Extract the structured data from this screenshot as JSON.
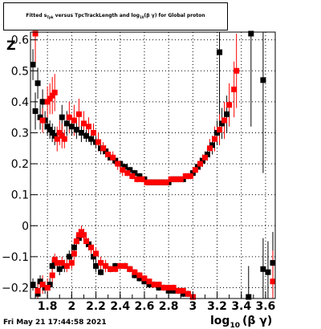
{
  "title": {
    "pre": "Fitted s",
    "sub1": "Tpk",
    "mid": " versus TpcTrackLength and log",
    "sub2": "10",
    "post": "(β γ) for Global proton"
  },
  "y_axis_label": "Z",
  "x_axis_label": {
    "main": "log",
    "sub": "10",
    "post": "(β γ)"
  },
  "timestamp": "Fri May 21 17:44:58 2021",
  "chart_data": {
    "type": "scatter",
    "xlim": [
      1.66,
      3.68
    ],
    "ylim": [
      -0.235,
      0.625
    ],
    "x_ticks": [
      1.8,
      2.0,
      2.2,
      2.4,
      2.6,
      2.8,
      3.0,
      3.2,
      3.4,
      3.6
    ],
    "x_tick_labels": [
      "1.8",
      "2",
      "2.2",
      "2.4",
      "2.6",
      "2.8",
      "3",
      "3.2",
      "3.4",
      "3.6"
    ],
    "y_ticks": [
      -0.2,
      -0.1,
      0.0,
      0.1,
      0.2,
      0.3,
      0.4,
      0.5,
      0.6
    ],
    "y_tick_labels": [
      "−0.2",
      "−0.1",
      "0",
      "0.1",
      "0.2",
      "0.3",
      "0.4",
      "0.5",
      "0.6"
    ],
    "grid": true,
    "series": [
      {
        "color": "#000000",
        "points": [
          [
            1.68,
            0.52,
            0.05
          ],
          [
            1.7,
            0.37,
            0.06
          ],
          [
            1.72,
            0.46,
            0.05
          ],
          [
            1.74,
            0.35,
            0.04
          ],
          [
            1.76,
            0.4,
            0.04
          ],
          [
            1.78,
            0.34,
            0.03
          ],
          [
            1.8,
            0.32,
            0.03
          ],
          [
            1.82,
            0.31,
            0.03
          ],
          [
            1.84,
            0.3,
            0.03
          ],
          [
            1.86,
            0.29,
            0.03
          ],
          [
            1.92,
            0.35,
            0.04
          ],
          [
            1.96,
            0.33,
            0.04
          ],
          [
            2.0,
            0.32,
            0.03
          ],
          [
            2.04,
            0.31,
            0.03
          ],
          [
            2.08,
            0.3,
            0.03
          ],
          [
            2.12,
            0.29,
            0.02
          ],
          [
            2.16,
            0.28,
            0.02
          ],
          [
            2.2,
            0.27,
            0.02
          ],
          [
            2.24,
            0.25,
            0.02
          ],
          [
            2.28,
            0.24,
            0.02
          ],
          [
            2.32,
            0.22,
            0.01
          ],
          [
            2.36,
            0.21,
            0.01
          ],
          [
            2.4,
            0.2,
            0.01
          ],
          [
            2.44,
            0.19,
            0.01
          ],
          [
            2.48,
            0.18,
            0.01
          ],
          [
            2.52,
            0.17,
            0.01
          ],
          [
            2.56,
            0.16,
            0.01
          ],
          [
            2.6,
            0.15,
            0.01
          ],
          [
            2.64,
            0.14,
            0.01
          ],
          [
            2.68,
            0.14,
            0.01
          ],
          [
            2.72,
            0.14,
            0.01
          ],
          [
            2.76,
            0.14,
            0.01
          ],
          [
            2.8,
            0.14,
            0.01
          ],
          [
            2.84,
            0.15,
            0.01
          ],
          [
            2.88,
            0.15,
            0.01
          ],
          [
            2.92,
            0.15,
            0.01
          ],
          [
            2.96,
            0.16,
            0.01
          ],
          [
            3.0,
            0.17,
            0.01
          ],
          [
            3.04,
            0.19,
            0.01
          ],
          [
            3.08,
            0.21,
            0.02
          ],
          [
            3.12,
            0.23,
            0.02
          ],
          [
            3.16,
            0.26,
            0.03
          ],
          [
            3.2,
            0.3,
            0.04
          ],
          [
            3.24,
            0.33,
            0.05
          ],
          [
            3.28,
            0.36,
            0.06
          ],
          [
            3.22,
            0.56,
            0.2
          ],
          [
            3.48,
            0.62,
            0.3
          ],
          [
            3.58,
            0.47,
            0.3
          ],
          [
            1.68,
            -0.19,
            0.02
          ],
          [
            1.72,
            -0.22,
            0.02
          ],
          [
            1.74,
            -0.18,
            0.02
          ],
          [
            1.78,
            -0.2,
            0.02
          ],
          [
            1.82,
            -0.19,
            0.02
          ],
          [
            1.84,
            -0.13,
            0.02
          ],
          [
            1.86,
            -0.12,
            0.02
          ],
          [
            1.9,
            -0.14,
            0.02
          ],
          [
            1.94,
            -0.13,
            0.02
          ],
          [
            1.98,
            -0.1,
            0.02
          ],
          [
            2.02,
            -0.07,
            0.02
          ],
          [
            2.06,
            -0.04,
            0.02
          ],
          [
            2.1,
            -0.03,
            0.02
          ],
          [
            2.14,
            -0.06,
            0.02
          ],
          [
            2.18,
            -0.1,
            0.02
          ],
          [
            2.2,
            -0.13,
            0.02
          ],
          [
            2.24,
            -0.15,
            0.01
          ],
          [
            2.28,
            -0.13,
            0.01
          ],
          [
            2.32,
            -0.14,
            0.01
          ],
          [
            2.36,
            -0.13,
            0.01
          ],
          [
            2.4,
            -0.13,
            0.01
          ],
          [
            2.44,
            -0.13,
            0.01
          ],
          [
            2.48,
            -0.14,
            0.01
          ],
          [
            2.52,
            -0.16,
            0.01
          ],
          [
            2.56,
            -0.17,
            0.01
          ],
          [
            2.6,
            -0.18,
            0.01
          ],
          [
            2.64,
            -0.19,
            0.01
          ],
          [
            2.68,
            -0.19,
            0.01
          ],
          [
            2.72,
            -0.2,
            0.01
          ],
          [
            2.76,
            -0.2,
            0.01
          ],
          [
            2.8,
            -0.21,
            0.01
          ],
          [
            2.84,
            -0.21,
            0.01
          ],
          [
            2.88,
            -0.21,
            0.01
          ],
          [
            2.92,
            -0.22,
            0.01
          ],
          [
            2.96,
            -0.22,
            0.01
          ],
          [
            3.0,
            -0.23,
            0.01
          ],
          [
            3.46,
            -0.23,
            0.1
          ],
          [
            3.58,
            -0.14,
            0.1
          ],
          [
            3.62,
            -0.15,
            0.1
          ],
          [
            3.66,
            -0.12,
            0.1
          ]
        ]
      },
      {
        "color": "#ff0000",
        "points": [
          [
            1.7,
            0.62,
            0.1
          ],
          [
            1.76,
            0.34,
            0.04
          ],
          [
            1.8,
            0.4,
            0.05
          ],
          [
            1.82,
            0.41,
            0.05
          ],
          [
            1.84,
            0.42,
            0.06
          ],
          [
            1.86,
            0.43,
            0.06
          ],
          [
            1.88,
            0.28,
            0.04
          ],
          [
            1.9,
            0.3,
            0.04
          ],
          [
            1.92,
            0.29,
            0.04
          ],
          [
            1.94,
            0.28,
            0.03
          ],
          [
            1.98,
            0.35,
            0.05
          ],
          [
            2.02,
            0.34,
            0.05
          ],
          [
            2.06,
            0.36,
            0.05
          ],
          [
            2.1,
            0.33,
            0.04
          ],
          [
            2.14,
            0.32,
            0.03
          ],
          [
            2.18,
            0.3,
            0.03
          ],
          [
            2.22,
            0.27,
            0.03
          ],
          [
            2.26,
            0.25,
            0.02
          ],
          [
            2.3,
            0.23,
            0.02
          ],
          [
            2.34,
            0.22,
            0.02
          ],
          [
            2.38,
            0.2,
            0.02
          ],
          [
            2.42,
            0.18,
            0.02
          ],
          [
            2.46,
            0.17,
            0.01
          ],
          [
            2.5,
            0.16,
            0.01
          ],
          [
            2.54,
            0.15,
            0.01
          ],
          [
            2.58,
            0.15,
            0.01
          ],
          [
            2.62,
            0.14,
            0.01
          ],
          [
            2.66,
            0.14,
            0.01
          ],
          [
            2.7,
            0.14,
            0.01
          ],
          [
            2.74,
            0.14,
            0.01
          ],
          [
            2.78,
            0.14,
            0.01
          ],
          [
            2.82,
            0.15,
            0.01
          ],
          [
            2.86,
            0.15,
            0.01
          ],
          [
            2.9,
            0.15,
            0.01
          ],
          [
            2.94,
            0.16,
            0.01
          ],
          [
            2.98,
            0.16,
            0.01
          ],
          [
            3.02,
            0.18,
            0.01
          ],
          [
            3.06,
            0.2,
            0.02
          ],
          [
            3.1,
            0.22,
            0.02
          ],
          [
            3.14,
            0.25,
            0.03
          ],
          [
            3.18,
            0.28,
            0.04
          ],
          [
            3.22,
            0.31,
            0.05
          ],
          [
            3.26,
            0.34,
            0.06
          ],
          [
            3.3,
            0.39,
            0.07
          ],
          [
            3.34,
            0.44,
            0.09
          ],
          [
            3.36,
            0.5,
            0.12
          ],
          [
            1.72,
            -0.21,
            0.03
          ],
          [
            1.76,
            -0.19,
            0.03
          ],
          [
            1.8,
            -0.2,
            0.03
          ],
          [
            1.84,
            -0.16,
            0.03
          ],
          [
            1.86,
            -0.11,
            0.02
          ],
          [
            1.88,
            -0.12,
            0.02
          ],
          [
            1.92,
            -0.12,
            0.02
          ],
          [
            1.96,
            -0.13,
            0.02
          ],
          [
            2.0,
            -0.12,
            0.02
          ],
          [
            2.02,
            -0.09,
            0.02
          ],
          [
            2.04,
            -0.05,
            0.02
          ],
          [
            2.06,
            -0.03,
            0.02
          ],
          [
            2.08,
            -0.02,
            0.02
          ],
          [
            2.1,
            -0.03,
            0.02
          ],
          [
            2.12,
            -0.05,
            0.02
          ],
          [
            2.16,
            -0.07,
            0.02
          ],
          [
            2.2,
            -0.09,
            0.02
          ],
          [
            2.24,
            -0.12,
            0.02
          ],
          [
            2.28,
            -0.13,
            0.02
          ],
          [
            2.32,
            -0.14,
            0.01
          ],
          [
            2.36,
            -0.14,
            0.01
          ],
          [
            2.4,
            -0.13,
            0.01
          ],
          [
            2.44,
            -0.13,
            0.01
          ],
          [
            2.48,
            -0.14,
            0.01
          ],
          [
            2.52,
            -0.15,
            0.01
          ],
          [
            2.56,
            -0.16,
            0.01
          ],
          [
            2.6,
            -0.17,
            0.01
          ],
          [
            2.64,
            -0.18,
            0.01
          ],
          [
            2.68,
            -0.19,
            0.01
          ],
          [
            2.72,
            -0.19,
            0.01
          ],
          [
            2.76,
            -0.2,
            0.01
          ],
          [
            2.8,
            -0.2,
            0.01
          ],
          [
            2.84,
            -0.2,
            0.01
          ],
          [
            2.88,
            -0.21,
            0.01
          ],
          [
            2.92,
            -0.21,
            0.01
          ],
          [
            2.96,
            -0.22,
            0.01
          ],
          [
            3.0,
            -0.23,
            0.01
          ],
          [
            3.66,
            -0.18,
            0.1
          ]
        ]
      }
    ]
  }
}
